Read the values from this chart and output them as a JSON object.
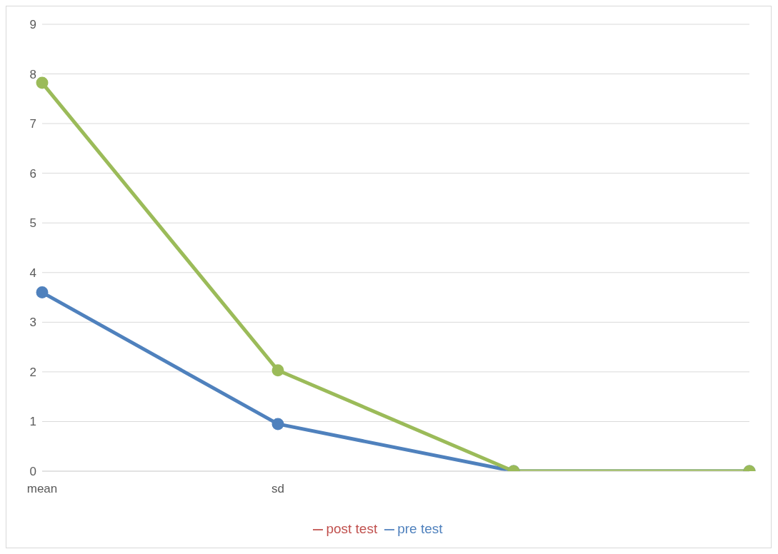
{
  "chart_data": {
    "type": "line",
    "categories": [
      "mean",
      "sd",
      null,
      null
    ],
    "series": [
      {
        "name": "pre test",
        "color": "#4f81bd",
        "values": [
          3.6,
          0.95,
          0,
          0
        ]
      },
      {
        "name": "post test",
        "color": "#c0504d",
        "values": [
          null,
          null,
          null,
          null
        ]
      },
      {
        "color": "#9bbb59",
        "values": [
          7.82,
          2.03,
          0,
          0
        ]
      }
    ],
    "ylim": [
      0,
      9
    ],
    "yticks": [
      0,
      1,
      2,
      3,
      4,
      5,
      6,
      7,
      8,
      9
    ],
    "grid": "y",
    "legend": "bottom",
    "marker": "circle",
    "line_style": "solid"
  }
}
